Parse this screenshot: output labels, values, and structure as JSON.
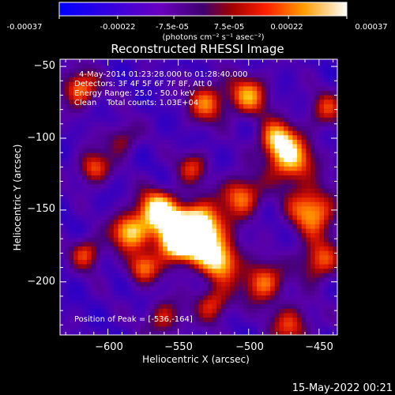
{
  "colorbar": {
    "tick_labels": [
      "-0.00037",
      "-0.00022",
      "-7.5e-05",
      "7.5e-05",
      "0.00022",
      "0.00037"
    ],
    "unit_label": "(photons cm⁻² s⁻¹ asec⁻²)",
    "range": [
      -0.00037,
      0.00037
    ]
  },
  "chart_data": {
    "type": "heatmap",
    "title": "Reconstructed RHESSI Image",
    "xlabel": "Heliocentric X (arcsec)",
    "ylabel": "Heliocentric Y (arcsec)",
    "xlim": [
      -634,
      -437
    ],
    "ylim": [
      -237,
      -45
    ],
    "x_ticks": [
      -600,
      -550,
      -500,
      -450
    ],
    "y_ticks": [
      -50,
      -100,
      -150,
      -200
    ],
    "x_tick_labels": [
      "−600",
      "−550",
      "−500",
      "−450"
    ],
    "y_tick_labels": [
      "−50",
      "−100",
      "−150",
      "−200"
    ],
    "annotations": [
      "4-May-2014 01:23:28.000 to 01:28:40.000",
      "Detectors: 3F 4F 5F 6F 7F 8F, Att 0",
      "Energy Range: 25.0 - 50.0 keV",
      "Clean    Total counts: 1.03E+04"
    ],
    "peak_label": "Position of Peak = [-536,-164]",
    "peak": [
      -536,
      -164
    ],
    "value_range": [
      -0.00037,
      0.00037
    ],
    "grid": false,
    "colormap": "rainbow-like: blue (negative) through purple, red, orange to white (positive)"
  },
  "footer": {
    "date_stamp": "15-May-2022 00:21"
  }
}
